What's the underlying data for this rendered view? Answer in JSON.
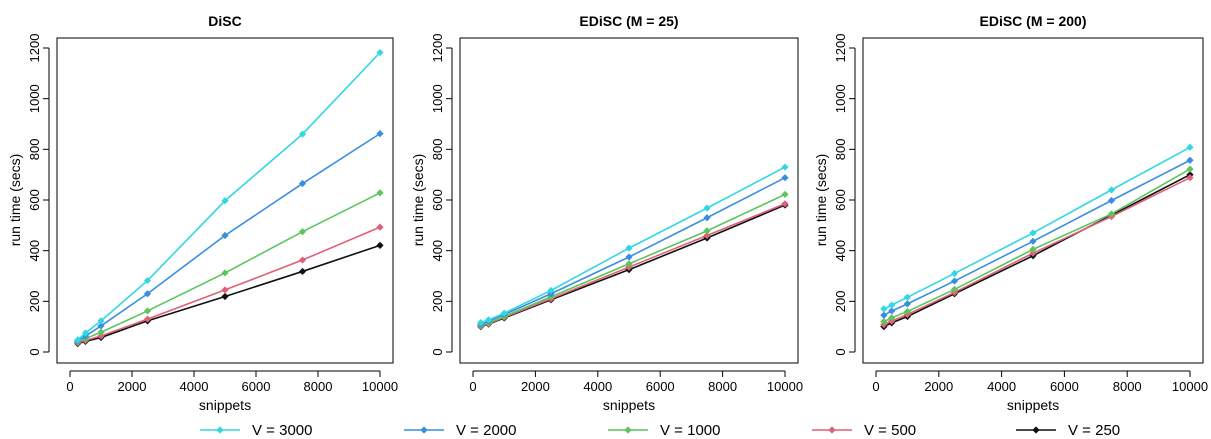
{
  "chart_data": [
    {
      "type": "line",
      "title": "DiSC",
      "xlabel": "snippets",
      "ylabel": "run time (secs)",
      "x": [
        250,
        500,
        1000,
        2500,
        5000,
        7500,
        10000
      ],
      "xlim": [
        0,
        10000
      ],
      "ylim": [
        0,
        1200
      ],
      "xticks": [
        0,
        2000,
        4000,
        6000,
        8000,
        10000
      ],
      "yticks": [
        0,
        200,
        400,
        600,
        800,
        1000,
        1200
      ],
      "series": [
        {
          "name": "V = 3000",
          "color": "#33d6e3",
          "values": [
            48,
            75,
            123,
            282,
            597,
            860,
            1182
          ]
        },
        {
          "name": "V = 2000",
          "color": "#3a8ee0",
          "values": [
            43,
            63,
            103,
            230,
            460,
            665,
            862
          ]
        },
        {
          "name": "V = 1000",
          "color": "#5cc55c",
          "values": [
            40,
            53,
            78,
            162,
            312,
            475,
            628
          ]
        },
        {
          "name": "V = 500",
          "color": "#e0607a",
          "values": [
            36,
            46,
            63,
            130,
            245,
            363,
            493
          ]
        },
        {
          "name": "V = 250",
          "color": "#111111",
          "values": [
            33,
            42,
            57,
            123,
            219,
            318,
            421
          ]
        }
      ]
    },
    {
      "type": "line",
      "title": "EDiSC (M = 25)",
      "xlabel": "snippets",
      "ylabel": "run time (secs)",
      "x": [
        250,
        500,
        1000,
        2500,
        5000,
        7500,
        10000
      ],
      "xlim": [
        0,
        10000
      ],
      "ylim": [
        0,
        1200
      ],
      "xticks": [
        0,
        2000,
        4000,
        6000,
        8000,
        10000
      ],
      "yticks": [
        0,
        200,
        400,
        600,
        800,
        1000,
        1200
      ],
      "series": [
        {
          "name": "V = 3000",
          "color": "#33d6e3",
          "values": [
            116,
            127,
            153,
            243,
            410,
            568,
            730
          ]
        },
        {
          "name": "V = 2000",
          "color": "#3a8ee0",
          "values": [
            110,
            122,
            148,
            230,
            375,
            530,
            688
          ]
        },
        {
          "name": "V = 1000",
          "color": "#5cc55c",
          "values": [
            105,
            115,
            140,
            218,
            348,
            478,
            622
          ]
        },
        {
          "name": "V = 500",
          "color": "#e0607a",
          "values": [
            102,
            112,
            137,
            210,
            335,
            460,
            585
          ]
        },
        {
          "name": "V = 250",
          "color": "#111111",
          "values": [
            100,
            110,
            134,
            206,
            325,
            450,
            580
          ]
        }
      ]
    },
    {
      "type": "line",
      "title": "EDiSC (M = 200)",
      "xlabel": "snippets",
      "ylabel": "run time (secs)",
      "x": [
        250,
        500,
        1000,
        2500,
        5000,
        7500,
        10000
      ],
      "xlim": [
        0,
        10000
      ],
      "ylim": [
        0,
        1200
      ],
      "xticks": [
        0,
        2000,
        4000,
        6000,
        8000,
        10000
      ],
      "yticks": [
        0,
        200,
        400,
        600,
        800,
        1000,
        1200
      ],
      "series": [
        {
          "name": "V = 3000",
          "color": "#33d6e3",
          "values": [
            170,
            185,
            216,
            310,
            470,
            640,
            808
          ]
        },
        {
          "name": "V = 2000",
          "color": "#3a8ee0",
          "values": [
            145,
            162,
            190,
            280,
            437,
            598,
            757
          ]
        },
        {
          "name": "V = 1000",
          "color": "#5cc55c",
          "values": [
            120,
            135,
            160,
            247,
            405,
            545,
            722
          ]
        },
        {
          "name": "V = 500",
          "color": "#e0607a",
          "values": [
            108,
            122,
            148,
            235,
            390,
            535,
            688
          ]
        },
        {
          "name": "V = 250",
          "color": "#111111",
          "values": [
            100,
            115,
            140,
            230,
            380,
            540,
            700
          ]
        }
      ]
    }
  ],
  "legend": {
    "placement": "bottom",
    "entries": [
      {
        "label": "V = 3000",
        "color": "#33d6e3"
      },
      {
        "label": "V = 2000",
        "color": "#3a8ee0"
      },
      {
        "label": "V = 1000",
        "color": "#5cc55c"
      },
      {
        "label": "V = 500",
        "color": "#e0607a"
      },
      {
        "label": "V = 250",
        "color": "#111111"
      }
    ]
  }
}
